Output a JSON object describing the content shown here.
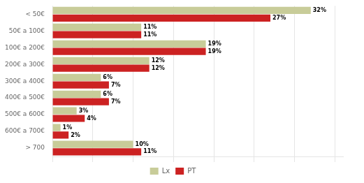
{
  "chart_data": {
    "type": "bar",
    "orientation": "horizontal",
    "categories": [
      "< 50€",
      "50€ a 100€",
      "100€ a 200€",
      "200€ a 300€",
      "300€ a 400€",
      "400€ a 500€",
      "500€ a 600€",
      "600€ a 700€",
      "> 700"
    ],
    "series": [
      {
        "name": "Lx",
        "color": "#c8cc99",
        "values": [
          32,
          11,
          19,
          12,
          6,
          6,
          3,
          1,
          10
        ],
        "value_labels": [
          "32%",
          "11%",
          "19%",
          "12%",
          "6%",
          "6%",
          "3%",
          "1%",
          "10%"
        ]
      },
      {
        "name": "PT",
        "color": "#cc2222",
        "values": [
          27,
          11,
          19,
          12,
          7,
          7,
          4,
          2,
          11
        ],
        "value_labels": [
          "27%",
          "11%",
          "19%",
          "12%",
          "7%",
          "7%",
          "4%",
          "2%",
          "11%"
        ]
      }
    ],
    "xlim": [
      0,
      36
    ],
    "xticks": [
      0,
      5,
      10,
      15,
      20,
      25,
      30,
      35
    ],
    "grid": true,
    "legend": "bottom",
    "data_labels": true,
    "tick_labels": "y"
  }
}
